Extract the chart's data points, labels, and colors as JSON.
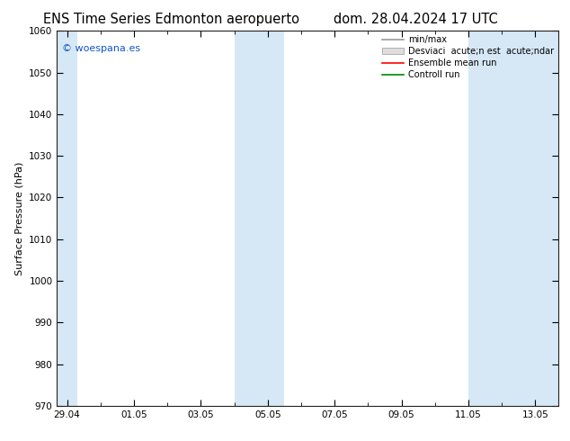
{
  "title_left": "ENS Time Series Edmonton aeropuerto",
  "title_right": "dom. 28.04.2024 17 UTC",
  "ylabel": "Surface Pressure (hPa)",
  "ylim": [
    970,
    1060
  ],
  "yticks": [
    970,
    980,
    990,
    1000,
    1010,
    1020,
    1030,
    1040,
    1050,
    1060
  ],
  "xtick_labels": [
    "29.04",
    "01.05",
    "03.05",
    "05.05",
    "07.05",
    "09.05",
    "11.05",
    "13.05"
  ],
  "xtick_positions": [
    0,
    2,
    4,
    6,
    8,
    10,
    12,
    14
  ],
  "xlim": [
    -0.3,
    14.7
  ],
  "shaded_regions": [
    {
      "x_start": -0.3,
      "x_end": 0.3
    },
    {
      "x_start": 5.0,
      "x_end": 6.5
    },
    {
      "x_start": 12.0,
      "x_end": 14.7
    }
  ],
  "shade_color": "#d6e8f5",
  "background_color": "#ffffff",
  "plot_bg_color": "#ffffff",
  "border_color": "#222222",
  "watermark_text": "© woespana.es",
  "watermark_color": "#1155cc",
  "x_total_days": 14,
  "title_fontsize": 10.5,
  "tick_fontsize": 7.5,
  "ylabel_fontsize": 8,
  "legend_fontsize": 7
}
